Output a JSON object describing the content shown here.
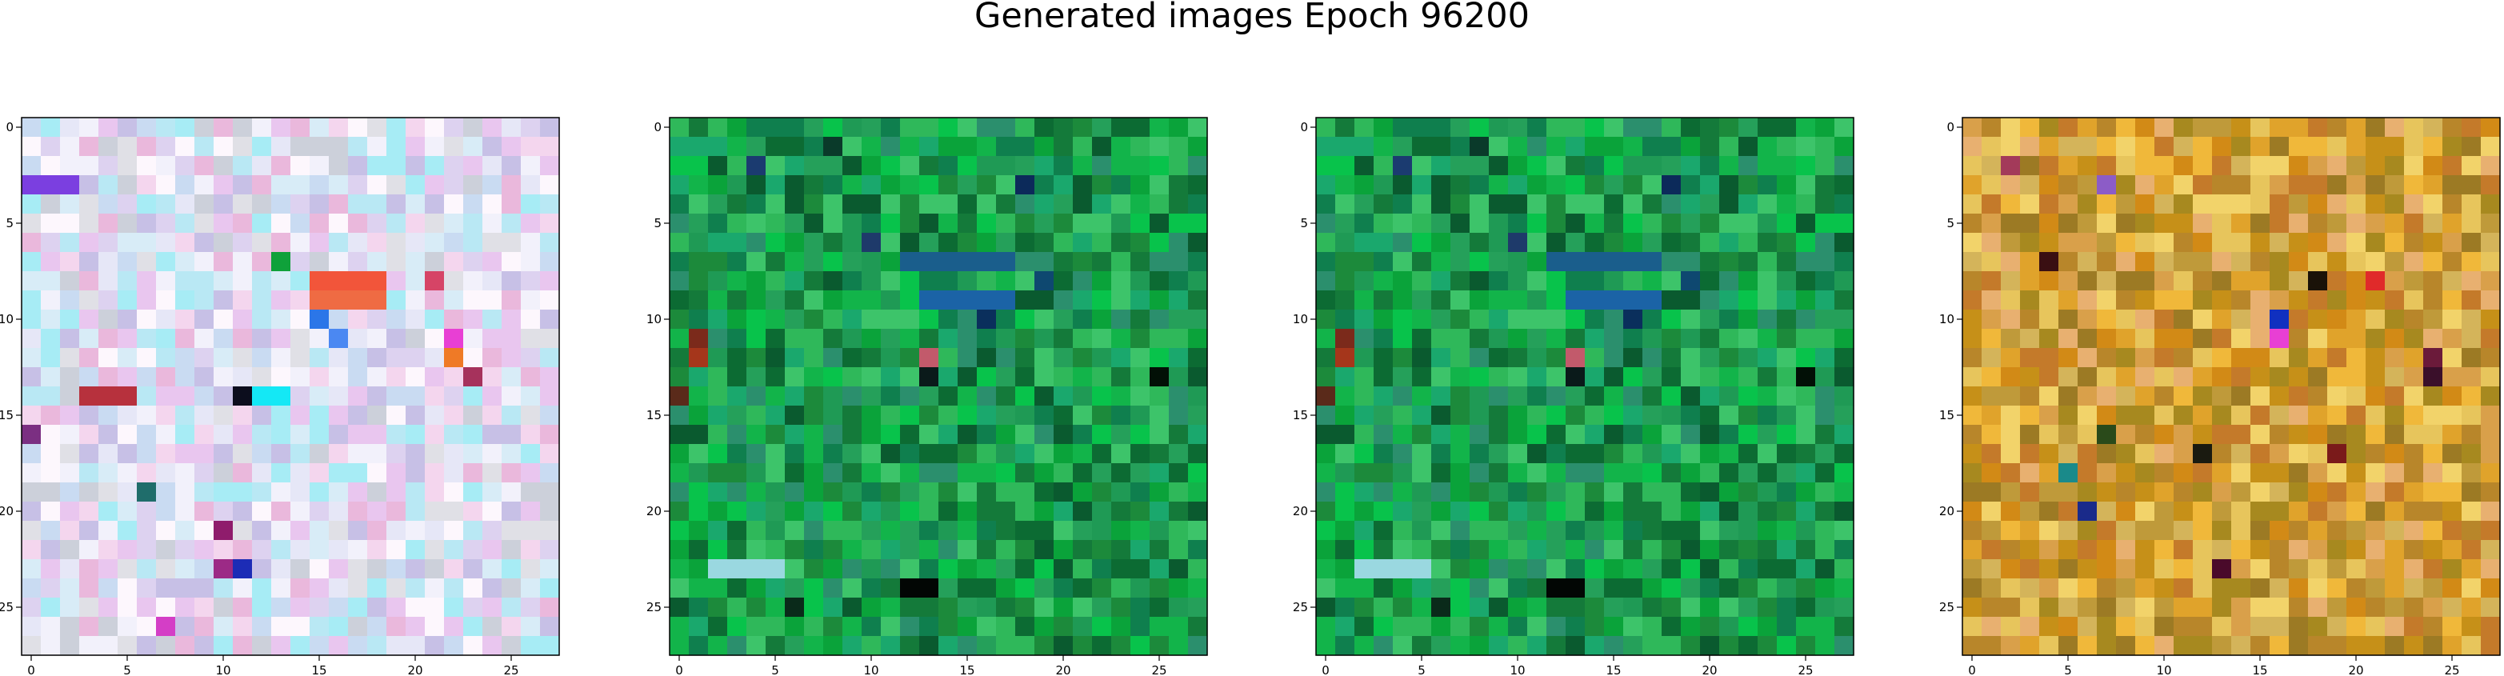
{
  "figure": {
    "title": "Generated images Epoch 96200"
  },
  "chart_data": [
    {
      "type": "heatmap",
      "panel": 1,
      "rows": 28,
      "cols": 28,
      "xlim": [
        -0.5,
        27.5
      ],
      "ylim": [
        27.5,
        -0.5
      ],
      "x_ticks": [
        0,
        5,
        10,
        15,
        20,
        25
      ],
      "y_ticks": [
        0,
        5,
        10,
        15,
        20,
        25
      ],
      "x_tick_labels": [
        "0",
        "5",
        "10",
        "15",
        "20",
        "25"
      ],
      "y_tick_labels": [
        "0",
        "5",
        "10",
        "15",
        "20",
        "25"
      ],
      "palette": [
        "#f2f1fb",
        "#e6e7f7",
        "#d8ecf7",
        "#c9dbf2",
        "#f4d6ee",
        "#ddd2f0",
        "#b9e8f4",
        "#e9c6ef",
        "#c7c0e6",
        "#e0e0e6",
        "#fdf7fd",
        "#ccd0da",
        "#a7ecf5",
        "#eab8dc"
      ],
      "features": [
        {
          "row": 3,
          "col_start": 0,
          "col_end": 2,
          "color": "#7b3fe0"
        },
        {
          "row": 7,
          "col": 13,
          "color": "#0fa13a"
        },
        {
          "row": 8,
          "col_start": 15,
          "col_end": 18,
          "color": "#f2553a"
        },
        {
          "row": 8,
          "col": 21,
          "color": "#d64466"
        },
        {
          "row": 9,
          "col_start": 15,
          "col_end": 18,
          "color": "#ef6b43"
        },
        {
          "row": 10,
          "col": 15,
          "color": "#2b76e8"
        },
        {
          "row": 11,
          "col": 16,
          "color": "#4b88f2"
        },
        {
          "row": 11,
          "col": 22,
          "color": "#e83fd4"
        },
        {
          "row": 12,
          "col": 22,
          "color": "#ef7a26"
        },
        {
          "row": 13,
          "col": 23,
          "color": "#a6325c"
        },
        {
          "row": 14,
          "col_start": 3,
          "col_end": 5,
          "color": "#b7313d"
        },
        {
          "row": 14,
          "col": 11,
          "color": "#0c0d1d"
        },
        {
          "row": 14,
          "col_start": 12,
          "col_end": 13,
          "color": "#14e8f5"
        },
        {
          "row": 16,
          "col": 0,
          "color": "#7b2f82"
        },
        {
          "row": 19,
          "col": 6,
          "color": "#1f6d6b"
        },
        {
          "row": 21,
          "col": 10,
          "color": "#8f1c6c"
        },
        {
          "row": 23,
          "col": 10,
          "color": "#9c2a86"
        },
        {
          "row": 23,
          "col": 11,
          "color": "#1c2cb6"
        },
        {
          "row": 26,
          "col": 7,
          "color": "#d43ec6"
        }
      ]
    },
    {
      "type": "heatmap",
      "panel": 2,
      "rows": 28,
      "cols": 28,
      "xlim": [
        -0.5,
        27.5
      ],
      "ylim": [
        27.5,
        -0.5
      ],
      "x_ticks": [
        0,
        5,
        10,
        15,
        20,
        25
      ],
      "y_ticks": [
        0,
        5,
        10,
        15,
        20,
        25
      ],
      "x_tick_labels": [
        "0",
        "5",
        "10",
        "15",
        "20",
        "25"
      ],
      "y_tick_labels": [
        "0",
        "5",
        "10",
        "15",
        "20",
        "25"
      ],
      "palette": [
        "#1c8a3b",
        "#0aa33a",
        "#2fb85a",
        "#0c6b33",
        "#1aa86d",
        "#3dc46a",
        "#0f7f4e",
        "#12b44a",
        "#0a5a2f",
        "#25a05a",
        "#1f9a55",
        "#08c34b",
        "#2b8f6d",
        "#147a3a"
      ],
      "features": [
        {
          "row": 1,
          "col": 8,
          "color": "#0a3a2a"
        },
        {
          "row": 2,
          "col": 4,
          "color": "#1b3b70"
        },
        {
          "row": 3,
          "col": 18,
          "color": "#0c2a5a"
        },
        {
          "row": 6,
          "col": 10,
          "color": "#1e3a6a"
        },
        {
          "row": 7,
          "col_start": 12,
          "col_end": 17,
          "color": "#1a5e8c"
        },
        {
          "row": 8,
          "col": 19,
          "color": "#0e4870"
        },
        {
          "row": 9,
          "col_start": 13,
          "col_end": 17,
          "color": "#1b63a6"
        },
        {
          "row": 10,
          "col": 16,
          "color": "#0a2f5c"
        },
        {
          "row": 11,
          "col": 1,
          "color": "#7b2a1b"
        },
        {
          "row": 12,
          "col": 1,
          "color": "#a5361b"
        },
        {
          "row": 12,
          "col": 13,
          "color": "#c25a6b"
        },
        {
          "row": 13,
          "col": 13,
          "color": "#0a1a1a"
        },
        {
          "row": 13,
          "col": 25,
          "color": "#021006"
        },
        {
          "row": 14,
          "col": 0,
          "color": "#5a2a1a"
        },
        {
          "row": 23,
          "col_start": 2,
          "col_end": 5,
          "color": "#9ad8e0"
        },
        {
          "row": 24,
          "col_start": 12,
          "col_end": 13,
          "color": "#020604"
        },
        {
          "row": 25,
          "col": 6,
          "color": "#0a2a1a"
        }
      ]
    },
    {
      "type": "heatmap",
      "panel": 3,
      "rows": 28,
      "cols": 28,
      "xlim": [
        -0.5,
        27.5
      ],
      "ylim": [
        27.5,
        -0.5
      ],
      "x_ticks": [
        0,
        5,
        10,
        15,
        20,
        25
      ],
      "y_ticks": [
        0,
        5,
        10,
        15,
        20,
        25
      ],
      "x_tick_labels": [
        "0",
        "5",
        "10",
        "15",
        "20",
        "25"
      ],
      "y_tick_labels": [
        "0",
        "5",
        "10",
        "15",
        "20",
        "25"
      ],
      "palette": [
        "#1c8a3b",
        "#0aa33a",
        "#2fb85a",
        "#0c6b33",
        "#1aa86d",
        "#3dc46a",
        "#0f7f4e",
        "#12b44a",
        "#0a5a2f",
        "#25a05a",
        "#1f9a55",
        "#08c34b",
        "#2b8f6d",
        "#147a3a"
      ],
      "features": [
        {
          "row": 1,
          "col": 8,
          "color": "#0a3a2a"
        },
        {
          "row": 2,
          "col": 4,
          "color": "#1b3b70"
        },
        {
          "row": 3,
          "col": 18,
          "color": "#0c2a5a"
        },
        {
          "row": 6,
          "col": 10,
          "color": "#1e3a6a"
        },
        {
          "row": 7,
          "col_start": 12,
          "col_end": 17,
          "color": "#1a5e8c"
        },
        {
          "row": 8,
          "col": 19,
          "color": "#0e4870"
        },
        {
          "row": 9,
          "col_start": 13,
          "col_end": 17,
          "color": "#1b63a6"
        },
        {
          "row": 10,
          "col": 16,
          "color": "#0a2f5c"
        },
        {
          "row": 11,
          "col": 1,
          "color": "#7b2a1b"
        },
        {
          "row": 12,
          "col": 1,
          "color": "#a5361b"
        },
        {
          "row": 12,
          "col": 13,
          "color": "#c25a6b"
        },
        {
          "row": 13,
          "col": 13,
          "color": "#0a1a1a"
        },
        {
          "row": 13,
          "col": 25,
          "color": "#021006"
        },
        {
          "row": 14,
          "col": 0,
          "color": "#5a2a1a"
        },
        {
          "row": 23,
          "col_start": 2,
          "col_end": 5,
          "color": "#9ad8e0"
        },
        {
          "row": 24,
          "col_start": 12,
          "col_end": 13,
          "color": "#020604"
        },
        {
          "row": 25,
          "col": 6,
          "color": "#0a2a1a"
        }
      ]
    },
    {
      "type": "heatmap",
      "panel": 4,
      "rows": 28,
      "cols": 28,
      "xlim": [
        -0.5,
        27.5
      ],
      "ylim": [
        27.5,
        -0.5
      ],
      "x_ticks": [
        0,
        5,
        10,
        15,
        20,
        25
      ],
      "y_ticks": [
        0,
        5,
        10,
        15,
        20,
        25
      ],
      "x_tick_labels": [
        "0",
        "5",
        "10",
        "15",
        "20",
        "25"
      ],
      "y_tick_labels": [
        "0",
        "5",
        "10",
        "15",
        "20",
        "25"
      ],
      "palette": [
        "#d28a16",
        "#e0a32b",
        "#c69018",
        "#f0b83a",
        "#b8862a",
        "#e7c55c",
        "#a7891f",
        "#d9a04a",
        "#f2d36a",
        "#c47a2a",
        "#e8b070",
        "#bf9a3a",
        "#d4b45a",
        "#9c7a24"
      ],
      "features": [
        {
          "row": 2,
          "col": 2,
          "color": "#a33a5a"
        },
        {
          "row": 3,
          "col": 7,
          "color": "#8c5cc7"
        },
        {
          "row": 7,
          "col": 4,
          "color": "#3a0f12"
        },
        {
          "row": 8,
          "col": 18,
          "color": "#1a1208"
        },
        {
          "row": 8,
          "col": 21,
          "color": "#e02a2a"
        },
        {
          "row": 10,
          "col": 16,
          "color": "#1030c0"
        },
        {
          "row": 11,
          "col": 16,
          "color": "#e83fd4"
        },
        {
          "row": 12,
          "col": 24,
          "color": "#6b1a3a"
        },
        {
          "row": 13,
          "col": 24,
          "color": "#3a0f2a"
        },
        {
          "row": 16,
          "col": 7,
          "color": "#2a4a1a"
        },
        {
          "row": 17,
          "col": 12,
          "color": "#1a1a10"
        },
        {
          "row": 17,
          "col": 19,
          "color": "#7a1a1a"
        },
        {
          "row": 18,
          "col": 5,
          "color": "#1a8a8a"
        },
        {
          "row": 20,
          "col": 6,
          "color": "#1a2a8a"
        },
        {
          "row": 23,
          "col": 13,
          "color": "#4a0a2a"
        }
      ]
    }
  ]
}
